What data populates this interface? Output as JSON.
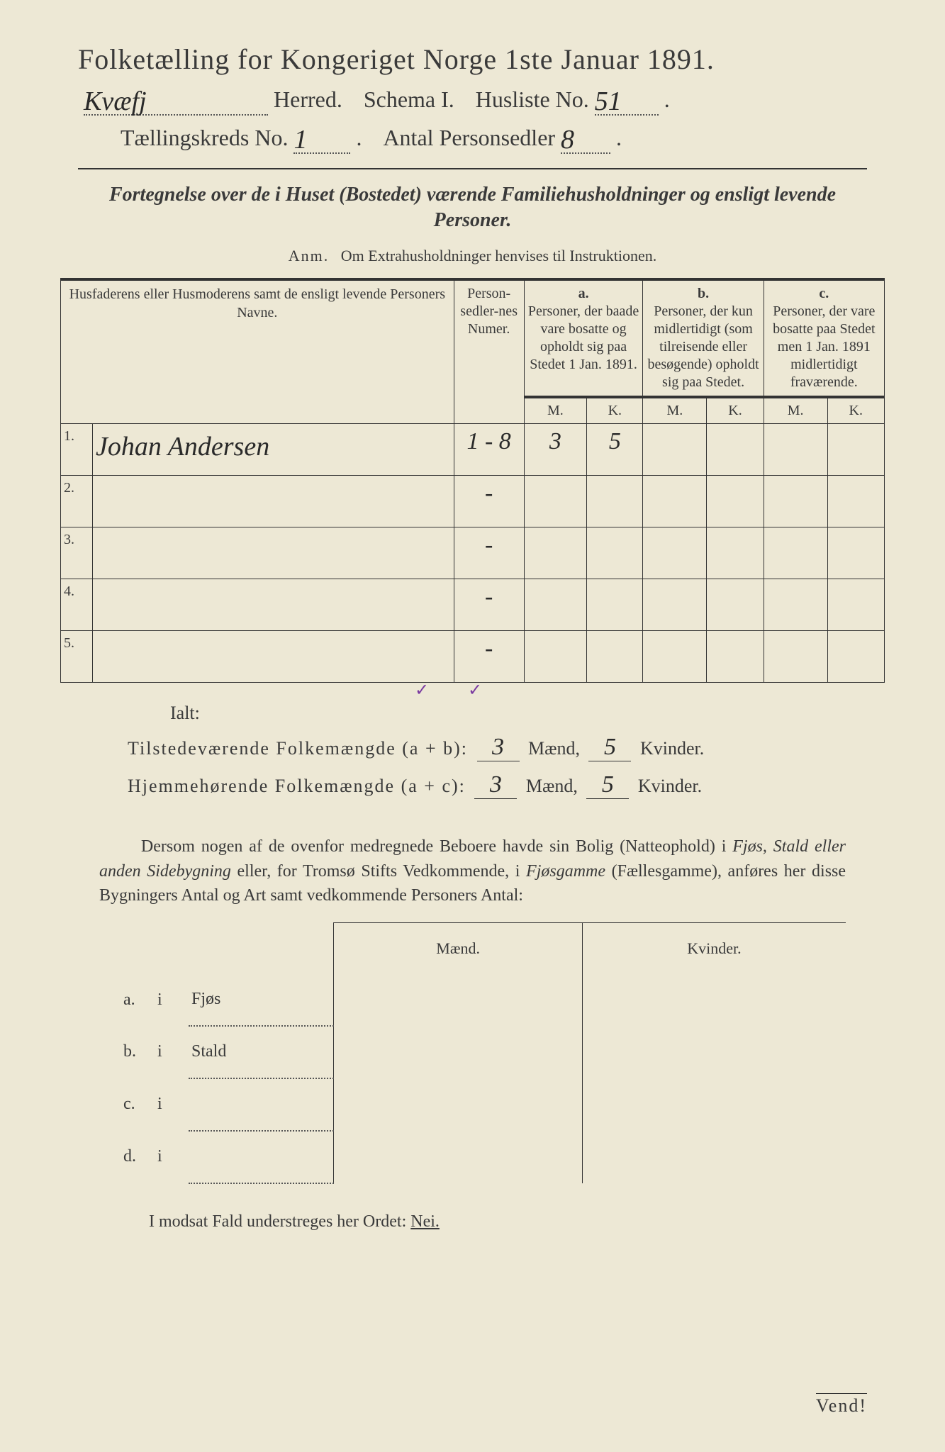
{
  "title": "Folketælling for Kongeriget Norge 1ste Januar 1891.",
  "header": {
    "herred_value": "Kvæfj",
    "herred_label": "Herred.",
    "schema_label": "Schema I.",
    "husliste_label": "Husliste No.",
    "husliste_value": "51",
    "kreds_label": "Tællingskreds No.",
    "kreds_value": "1",
    "antal_label": "Antal Personsedler",
    "antal_value": "8"
  },
  "fortegnelse": "Fortegnelse over de i Huset (Bostedet) værende Familiehusholdninger og ensligt levende Personer.",
  "anm_label": "Anm.",
  "anm_text": "Om Extrahusholdninger henvises til Instruktionen.",
  "table": {
    "col_names": "Husfaderens eller Husmoderens samt de ensligt levende Personers Navne.",
    "col_nummer": "Person-sedler-nes Numer.",
    "col_a_label": "a.",
    "col_a_text": "Personer, der baade vare bosatte og opholdt sig paa Stedet 1 Jan. 1891.",
    "col_b_label": "b.",
    "col_b_text": "Personer, der kun midlertidigt (som tilreisende eller besøgende) opholdt sig paa Stedet.",
    "col_c_label": "c.",
    "col_c_text": "Personer, der vare bosatte paa Stedet men 1 Jan. 1891 midlertidigt fraværende.",
    "m": "M.",
    "k": "K.",
    "rows": [
      {
        "n": "1.",
        "name": "Johan Andersen",
        "numer": "1 - 8",
        "am": "3",
        "ak": "5",
        "bm": "",
        "bk": "",
        "cm": "",
        "ck": ""
      },
      {
        "n": "2.",
        "name": "",
        "numer": "-",
        "am": "",
        "ak": "",
        "bm": "",
        "bk": "",
        "cm": "",
        "ck": ""
      },
      {
        "n": "3.",
        "name": "",
        "numer": "-",
        "am": "",
        "ak": "",
        "bm": "",
        "bk": "",
        "cm": "",
        "ck": ""
      },
      {
        "n": "4.",
        "name": "",
        "numer": "-",
        "am": "",
        "ak": "",
        "bm": "",
        "bk": "",
        "cm": "",
        "ck": ""
      },
      {
        "n": "5.",
        "name": "",
        "numer": "-",
        "am": "",
        "ak": "",
        "bm": "",
        "bk": "",
        "cm": "",
        "ck": ""
      }
    ],
    "tick_m": "✓",
    "tick_k": "✓"
  },
  "ialt": {
    "label": "Ialt:",
    "tilstede_label": "Tilstedeværende Folkemængde (a + b):",
    "hjemme_label": "Hjemmehørende Folkemængde (a + c):",
    "maend": "Mænd,",
    "kvinder": "Kvinder.",
    "t_m": "3",
    "t_k": "5",
    "h_m": "3",
    "h_k": "5"
  },
  "bldg_para": {
    "p1": "Dersom nogen af de ovenfor medregnede Beboere havde sin Bolig (Natteophold) i ",
    "i1": "Fjøs, Stald eller anden Sidebygning",
    "p2": " eller, for Tromsø Stifts Vedkommende, i ",
    "i2": "Fjøsgamme",
    "p3": " (Fællesgamme), anføres her disse Bygningers Antal og Art samt vedkommende Personers Antal:"
  },
  "bldg_table": {
    "maend": "Mænd.",
    "kvinder": "Kvinder.",
    "rows": [
      {
        "l": "a.",
        "i": "i",
        "name": "Fjøs"
      },
      {
        "l": "b.",
        "i": "i",
        "name": "Stald"
      },
      {
        "l": "c.",
        "i": "i",
        "name": ""
      },
      {
        "l": "d.",
        "i": "i",
        "name": ""
      }
    ]
  },
  "modsat": "I modsat Fald understreges her Ordet: ",
  "nei": "Nei.",
  "vend": "Vend!",
  "colors": {
    "paper": "#ede8d5",
    "ink": "#3a3a3a",
    "pen": "#2a2a2a",
    "tick": "#7a3aa0"
  }
}
